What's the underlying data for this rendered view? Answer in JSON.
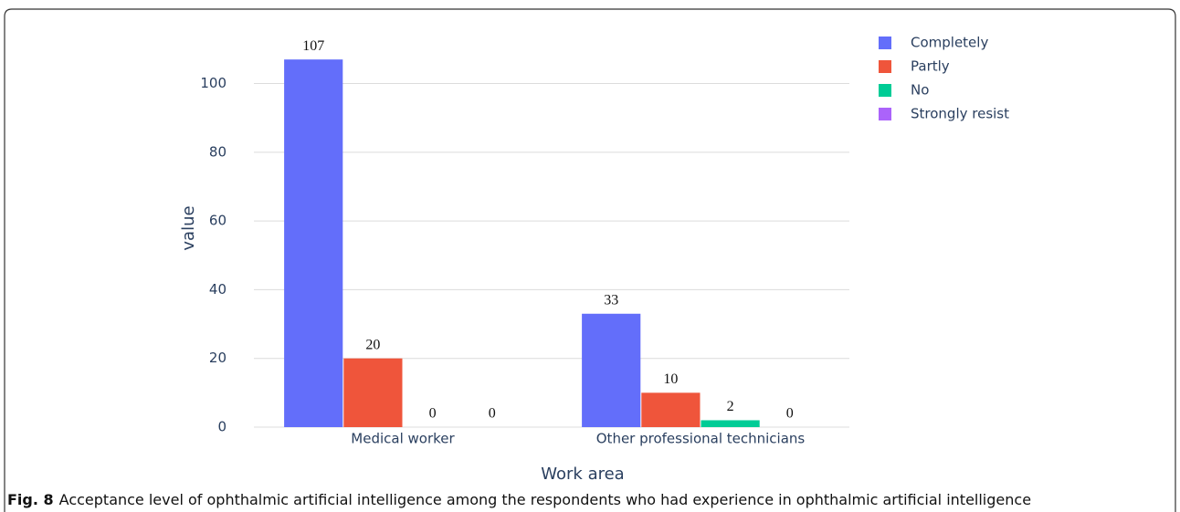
{
  "chart_data": {
    "type": "bar",
    "categories": [
      "Medical worker",
      "Other professional technicians"
    ],
    "series": [
      {
        "name": "Completely",
        "color": "#636efa",
        "values": [
          107,
          33
        ]
      },
      {
        "name": "Partly",
        "color": "#ef553b",
        "values": [
          20,
          10
        ]
      },
      {
        "name": "No",
        "color": "#00cc96",
        "values": [
          0,
          2
        ]
      },
      {
        "name": "Strongly resist",
        "color": "#ab63fa",
        "values": [
          0,
          0
        ]
      }
    ],
    "xlabel": "Work area",
    "ylabel": "value",
    "ylim": [
      0,
      119
    ],
    "yticks": [
      0,
      20,
      40,
      60,
      80,
      100
    ],
    "grid": true
  },
  "caption": {
    "label": "Fig. 8",
    "text": "Acceptance level of ophthalmic artificial intelligence among the respondents who had experience in ophthalmic artificial intelligence"
  }
}
